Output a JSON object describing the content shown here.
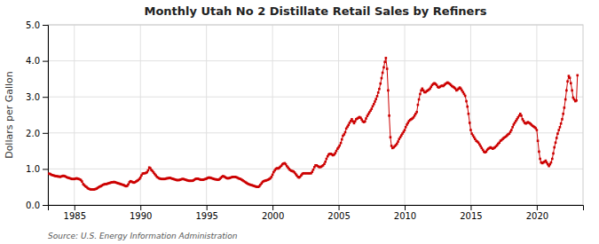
{
  "chart_data": {
    "type": "line",
    "title": "Monthly Utah No 2 Distillate Retail Sales by Refiners",
    "ylabel": "Dollars per Gallon",
    "annotations": [
      "Source: U.S. Energy Information Administration"
    ],
    "color": "#cc0000",
    "marker": "square",
    "grid": true,
    "xlim": [
      1983.0,
      2023.5
    ],
    "xticks": [
      1985,
      1990,
      1995,
      2000,
      2005,
      2010,
      2015,
      2020
    ],
    "ylim": [
      0.0,
      5.0
    ],
    "yticks": [
      {
        "value": 0.0,
        "label": "0.0"
      },
      {
        "value": 1.0,
        "label": "1.0"
      },
      {
        "value": 2.0,
        "label": "2.0"
      },
      {
        "value": 3.0,
        "label": "3.0"
      },
      {
        "value": 4.0,
        "label": "4.0"
      },
      {
        "value": 5.0,
        "label": "5.0"
      }
    ],
    "x": [
      1983.08,
      1983.17,
      1983.25,
      1983.33,
      1983.42,
      1983.5,
      1983.58,
      1983.67,
      1983.75,
      1983.83,
      1983.92,
      1984.0,
      1984.08,
      1984.17,
      1984.25,
      1984.33,
      1984.42,
      1984.5,
      1984.58,
      1984.67,
      1984.75,
      1984.83,
      1984.92,
      1985.0,
      1985.08,
      1985.17,
      1985.25,
      1985.33,
      1985.42,
      1985.5,
      1985.58,
      1985.67,
      1985.75,
      1985.83,
      1985.92,
      1986.0,
      1986.08,
      1986.17,
      1986.25,
      1986.33,
      1986.42,
      1986.5,
      1986.58,
      1986.67,
      1986.75,
      1986.83,
      1986.92,
      1987.0,
      1987.08,
      1987.17,
      1987.25,
      1987.33,
      1987.42,
      1987.5,
      1987.58,
      1987.67,
      1987.75,
      1987.83,
      1987.92,
      1988.0,
      1988.08,
      1988.17,
      1988.25,
      1988.33,
      1988.42,
      1988.5,
      1988.58,
      1988.67,
      1988.75,
      1988.83,
      1988.92,
      1989.0,
      1989.08,
      1989.17,
      1989.25,
      1989.33,
      1989.42,
      1989.5,
      1989.58,
      1989.67,
      1989.75,
      1989.83,
      1989.92,
      1990.0,
      1990.08,
      1990.17,
      1990.25,
      1990.33,
      1990.42,
      1990.5,
      1990.58,
      1990.67,
      1990.75,
      1990.83,
      1990.92,
      1991.0,
      1991.08,
      1991.17,
      1991.25,
      1991.33,
      1991.42,
      1991.5,
      1991.58,
      1991.67,
      1991.75,
      1991.83,
      1991.92,
      1992.0,
      1992.08,
      1992.17,
      1992.25,
      1992.33,
      1992.42,
      1992.5,
      1992.58,
      1992.67,
      1992.75,
      1992.83,
      1992.92,
      1993.0,
      1993.08,
      1993.17,
      1993.25,
      1993.33,
      1993.42,
      1993.5,
      1993.58,
      1993.67,
      1993.75,
      1993.83,
      1993.92,
      1994.0,
      1994.08,
      1994.17,
      1994.25,
      1994.33,
      1994.42,
      1994.5,
      1994.58,
      1994.67,
      1994.75,
      1994.83,
      1994.92,
      1995.0,
      1995.08,
      1995.17,
      1995.25,
      1995.33,
      1995.42,
      1995.5,
      1995.58,
      1995.67,
      1995.75,
      1995.83,
      1995.92,
      1996.0,
      1996.08,
      1996.17,
      1996.25,
      1996.33,
      1996.42,
      1996.5,
      1996.58,
      1996.67,
      1996.75,
      1996.83,
      1996.92,
      1997.0,
      1997.08,
      1997.17,
      1997.25,
      1997.33,
      1997.42,
      1997.5,
      1997.58,
      1997.67,
      1997.75,
      1997.83,
      1997.92,
      1998.0,
      1998.08,
      1998.17,
      1998.25,
      1998.33,
      1998.42,
      1998.5,
      1998.58,
      1998.67,
      1998.75,
      1998.83,
      1998.92,
      1999.0,
      1999.08,
      1999.17,
      1999.25,
      1999.33,
      1999.42,
      1999.5,
      1999.58,
      1999.67,
      1999.75,
      1999.83,
      1999.92,
      2000.0,
      2000.08,
      2000.17,
      2000.25,
      2000.33,
      2000.42,
      2000.5,
      2000.58,
      2000.67,
      2000.75,
      2000.83,
      2000.92,
      2001.0,
      2001.08,
      2001.17,
      2001.25,
      2001.33,
      2001.42,
      2001.5,
      2001.58,
      2001.67,
      2001.75,
      2001.83,
      2001.92,
      2002.0,
      2002.08,
      2002.17,
      2002.25,
      2002.33,
      2002.42,
      2002.5,
      2002.58,
      2002.67,
      2002.75,
      2002.83,
      2002.92,
      2003.0,
      2003.08,
      2003.17,
      2003.25,
      2003.33,
      2003.42,
      2003.5,
      2003.58,
      2003.67,
      2003.75,
      2003.83,
      2003.92,
      2004.0,
      2004.08,
      2004.17,
      2004.25,
      2004.33,
      2004.42,
      2004.5,
      2004.58,
      2004.67,
      2004.75,
      2004.83,
      2004.92,
      2005.0,
      2005.08,
      2005.17,
      2005.25,
      2005.33,
      2005.42,
      2005.5,
      2005.58,
      2005.67,
      2005.75,
      2005.83,
      2005.92,
      2006.0,
      2006.08,
      2006.17,
      2006.25,
      2006.33,
      2006.42,
      2006.5,
      2006.58,
      2006.67,
      2006.75,
      2006.83,
      2006.92,
      2007.0,
      2007.08,
      2007.17,
      2007.25,
      2007.33,
      2007.42,
      2007.5,
      2007.58,
      2007.67,
      2007.75,
      2007.83,
      2007.92,
      2008.0,
      2008.08,
      2008.17,
      2008.25,
      2008.33,
      2008.42,
      2008.5,
      2008.58,
      2008.67,
      2008.75,
      2008.83,
      2008.92,
      2009.0,
      2009.08,
      2009.17,
      2009.25,
      2009.33,
      2009.42,
      2009.5,
      2009.58,
      2009.67,
      2009.75,
      2009.83,
      2009.92,
      2010.0,
      2010.08,
      2010.17,
      2010.25,
      2010.33,
      2010.42,
      2010.5,
      2010.58,
      2010.67,
      2010.75,
      2010.83,
      2010.92,
      2011.0,
      2011.08,
      2011.17,
      2011.25,
      2011.33,
      2011.42,
      2011.5,
      2011.58,
      2011.67,
      2011.75,
      2011.83,
      2011.92,
      2012.0,
      2012.08,
      2012.17,
      2012.25,
      2012.33,
      2012.42,
      2012.5,
      2012.58,
      2012.67,
      2012.75,
      2012.83,
      2012.92,
      2013.0,
      2013.08,
      2013.17,
      2013.25,
      2013.33,
      2013.42,
      2013.5,
      2013.58,
      2013.67,
      2013.75,
      2013.83,
      2013.92,
      2014.0,
      2014.08,
      2014.17,
      2014.25,
      2014.33,
      2014.42,
      2014.5,
      2014.58,
      2014.67,
      2014.75,
      2014.83,
      2014.92,
      2015.0,
      2015.08,
      2015.17,
      2015.25,
      2015.33,
      2015.42,
      2015.5,
      2015.58,
      2015.67,
      2015.75,
      2015.83,
      2015.92,
      2016.0,
      2016.08,
      2016.17,
      2016.25,
      2016.33,
      2016.42,
      2016.5,
      2016.58,
      2016.67,
      2016.75,
      2016.83,
      2016.92,
      2017.0,
      2017.08,
      2017.17,
      2017.25,
      2017.33,
      2017.42,
      2017.5,
      2017.58,
      2017.67,
      2017.75,
      2017.83,
      2017.92,
      2018.0,
      2018.08,
      2018.17,
      2018.25,
      2018.33,
      2018.42,
      2018.5,
      2018.58,
      2018.67,
      2018.75,
      2018.83,
      2018.92,
      2019.0,
      2019.08,
      2019.17,
      2019.25,
      2019.33,
      2019.42,
      2019.5,
      2019.58,
      2019.67,
      2019.75,
      2019.83,
      2019.92,
      2020.0,
      2020.08,
      2020.17,
      2020.25,
      2020.33,
      2020.42,
      2020.5,
      2020.58,
      2020.67,
      2020.75,
      2020.83,
      2020.92,
      2021.0,
      2021.08,
      2021.17,
      2021.25,
      2021.33,
      2021.42,
      2021.5,
      2021.58,
      2021.67,
      2021.75,
      2021.83,
      2021.92,
      2022.0,
      2022.08,
      2022.17,
      2022.25,
      2022.33,
      2022.42,
      2022.5,
      2022.58,
      2022.67,
      2022.75,
      2022.83,
      2022.92,
      2023.0,
      2023.08
    ],
    "values": [
      0.87,
      0.86,
      0.84,
      0.83,
      0.82,
      0.81,
      0.8,
      0.8,
      0.79,
      0.79,
      0.78,
      0.79,
      0.8,
      0.81,
      0.8,
      0.79,
      0.77,
      0.76,
      0.75,
      0.74,
      0.73,
      0.72,
      0.72,
      0.72,
      0.73,
      0.74,
      0.73,
      0.72,
      0.71,
      0.69,
      0.65,
      0.58,
      0.55,
      0.52,
      0.5,
      0.47,
      0.45,
      0.44,
      0.43,
      0.43,
      0.43,
      0.43,
      0.44,
      0.45,
      0.47,
      0.49,
      0.51,
      0.52,
      0.54,
      0.56,
      0.57,
      0.58,
      0.58,
      0.59,
      0.6,
      0.61,
      0.62,
      0.63,
      0.63,
      0.64,
      0.63,
      0.62,
      0.61,
      0.6,
      0.59,
      0.58,
      0.57,
      0.56,
      0.55,
      0.53,
      0.52,
      0.53,
      0.57,
      0.63,
      0.66,
      0.65,
      0.63,
      0.62,
      0.63,
      0.65,
      0.67,
      0.69,
      0.72,
      0.76,
      0.82,
      0.87,
      0.88,
      0.88,
      0.89,
      0.91,
      0.96,
      1.04,
      1.02,
      0.97,
      0.94,
      0.9,
      0.86,
      0.82,
      0.78,
      0.76,
      0.74,
      0.73,
      0.72,
      0.72,
      0.72,
      0.72,
      0.73,
      0.74,
      0.74,
      0.75,
      0.75,
      0.74,
      0.73,
      0.72,
      0.71,
      0.7,
      0.69,
      0.69,
      0.69,
      0.7,
      0.71,
      0.72,
      0.72,
      0.71,
      0.7,
      0.69,
      0.68,
      0.67,
      0.67,
      0.67,
      0.67,
      0.68,
      0.7,
      0.72,
      0.73,
      0.73,
      0.72,
      0.71,
      0.7,
      0.7,
      0.7,
      0.71,
      0.72,
      0.73,
      0.75,
      0.76,
      0.76,
      0.75,
      0.74,
      0.73,
      0.72,
      0.71,
      0.71,
      0.7,
      0.7,
      0.72,
      0.75,
      0.78,
      0.8,
      0.79,
      0.77,
      0.75,
      0.74,
      0.74,
      0.75,
      0.76,
      0.77,
      0.78,
      0.78,
      0.78,
      0.77,
      0.76,
      0.74,
      0.73,
      0.72,
      0.7,
      0.68,
      0.66,
      0.64,
      0.62,
      0.6,
      0.58,
      0.57,
      0.56,
      0.55,
      0.54,
      0.53,
      0.52,
      0.51,
      0.5,
      0.5,
      0.52,
      0.56,
      0.6,
      0.64,
      0.66,
      0.67,
      0.68,
      0.69,
      0.7,
      0.72,
      0.74,
      0.78,
      0.84,
      0.91,
      0.96,
      1.0,
      1.02,
      1.01,
      1.03,
      1.06,
      1.09,
      1.13,
      1.15,
      1.16,
      1.13,
      1.08,
      1.04,
      1.0,
      0.97,
      0.95,
      0.94,
      0.93,
      0.9,
      0.86,
      0.82,
      0.78,
      0.76,
      0.78,
      0.82,
      0.86,
      0.88,
      0.88,
      0.88,
      0.88,
      0.88,
      0.88,
      0.88,
      0.88,
      0.92,
      0.98,
      1.05,
      1.1,
      1.1,
      1.08,
      1.06,
      1.05,
      1.06,
      1.08,
      1.1,
      1.14,
      1.2,
      1.28,
      1.35,
      1.4,
      1.42,
      1.42,
      1.4,
      1.38,
      1.4,
      1.44,
      1.5,
      1.56,
      1.6,
      1.65,
      1.72,
      1.82,
      1.92,
      1.96,
      2.02,
      2.12,
      2.17,
      2.22,
      2.28,
      2.33,
      2.38,
      2.32,
      2.27,
      2.32,
      2.38,
      2.4,
      2.42,
      2.44,
      2.42,
      2.37,
      2.32,
      2.3,
      2.32,
      2.4,
      2.47,
      2.52,
      2.57,
      2.62,
      2.67,
      2.74,
      2.8,
      2.87,
      2.94,
      3.02,
      3.12,
      3.22,
      3.37,
      3.52,
      3.67,
      3.82,
      3.97,
      4.08,
      3.78,
      3.18,
      2.48,
      1.88,
      1.64,
      1.58,
      1.6,
      1.63,
      1.66,
      1.7,
      1.76,
      1.83,
      1.88,
      1.93,
      1.98,
      2.03,
      2.08,
      2.16,
      2.23,
      2.28,
      2.33,
      2.36,
      2.38,
      2.4,
      2.43,
      2.48,
      2.53,
      2.58,
      2.78,
      2.93,
      3.08,
      3.18,
      3.23,
      3.18,
      3.13,
      3.13,
      3.16,
      3.18,
      3.2,
      3.23,
      3.28,
      3.33,
      3.36,
      3.38,
      3.36,
      3.33,
      3.28,
      3.26,
      3.28,
      3.3,
      3.31,
      3.3,
      3.33,
      3.36,
      3.38,
      3.4,
      3.38,
      3.36,
      3.33,
      3.3,
      3.28,
      3.26,
      3.23,
      3.18,
      3.2,
      3.23,
      3.26,
      3.23,
      3.18,
      3.13,
      3.08,
      3.03,
      2.88,
      2.73,
      2.53,
      2.28,
      2.08,
      1.98,
      1.93,
      1.88,
      1.83,
      1.78,
      1.76,
      1.73,
      1.68,
      1.63,
      1.58,
      1.53,
      1.48,
      1.46,
      1.48,
      1.53,
      1.56,
      1.58,
      1.6,
      1.58,
      1.56,
      1.58,
      1.6,
      1.63,
      1.66,
      1.7,
      1.73,
      1.78,
      1.8,
      1.83,
      1.86,
      1.88,
      1.9,
      1.93,
      1.96,
      1.98,
      2.03,
      2.08,
      2.16,
      2.23,
      2.28,
      2.33,
      2.38,
      2.43,
      2.48,
      2.53,
      2.48,
      2.38,
      2.33,
      2.28,
      2.26,
      2.28,
      2.3,
      2.28,
      2.26,
      2.23,
      2.2,
      2.18,
      2.16,
      2.13,
      2.08,
      1.78,
      1.48,
      1.28,
      1.18,
      1.16,
      1.18,
      1.2,
      1.23,
      1.18,
      1.13,
      1.08,
      1.13,
      1.18,
      1.28,
      1.43,
      1.6,
      1.73,
      1.86,
      1.98,
      2.08,
      2.16,
      2.26,
      2.38,
      2.53,
      2.7,
      2.93,
      3.18,
      3.43,
      3.58,
      3.53,
      3.38,
      3.18,
      2.98,
      2.93,
      2.88,
      2.9,
      3.6
    ]
  }
}
